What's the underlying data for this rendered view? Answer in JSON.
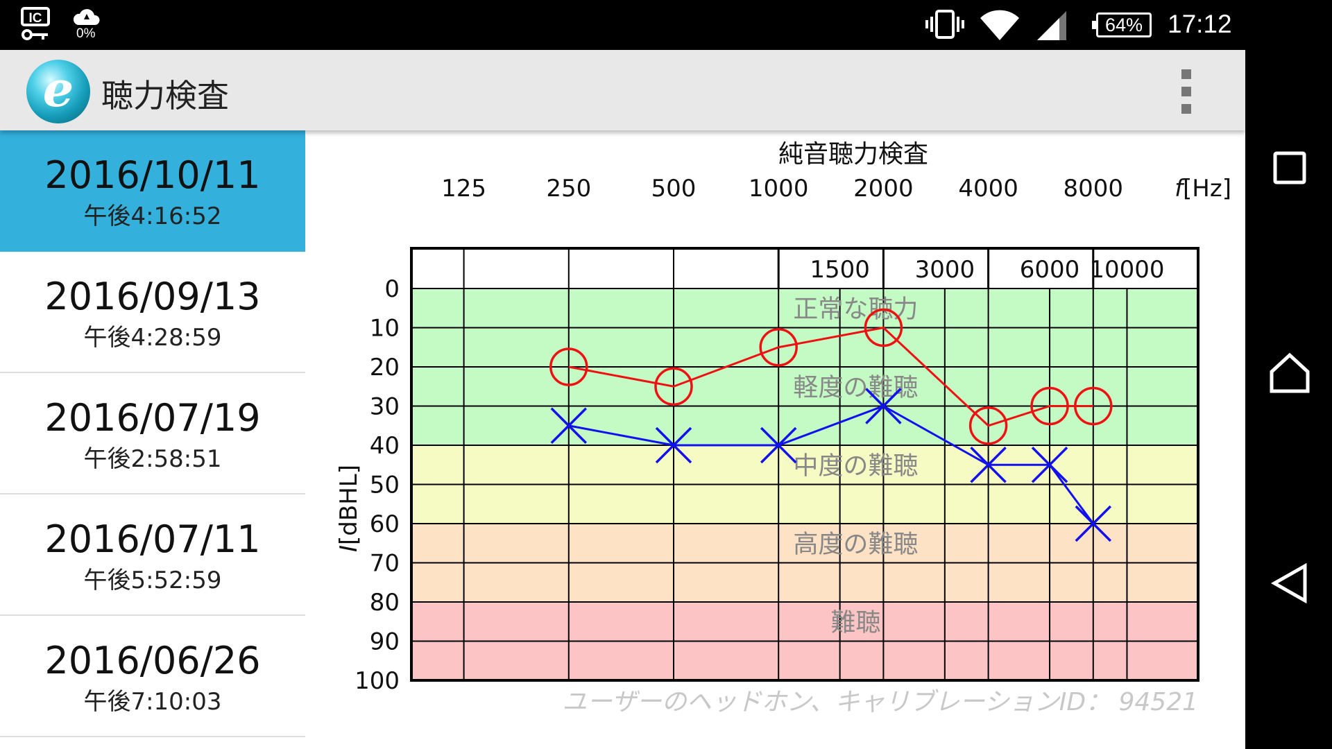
{
  "status_bar": {
    "data_usage": "0%",
    "battery": "64%",
    "time": "17:12",
    "icons": [
      "ic-key-icon",
      "cloud-sync-icon",
      "vibrate-icon",
      "wifi-icon",
      "cell-signal-icon",
      "battery-icon"
    ]
  },
  "action_bar": {
    "title": "聴力検査",
    "logo_icon": "app-logo-e-icon",
    "logo_letter": "e",
    "menu_icon": "overflow-menu-icon"
  },
  "date_list": [
    {
      "date": "2016/10/11",
      "time": "午後4:16:52",
      "selected": true
    },
    {
      "date": "2016/09/13",
      "time": "午後4:28:59",
      "selected": false
    },
    {
      "date": "2016/07/19",
      "time": "午後2:58:51",
      "selected": false
    },
    {
      "date": "2016/07/11",
      "time": "午後5:52:59",
      "selected": false
    },
    {
      "date": "2016/06/26",
      "time": "午後7:10:03",
      "selected": false
    }
  ],
  "nav_bar": {
    "icons": [
      "recent-apps-icon",
      "home-icon",
      "back-icon"
    ]
  },
  "chart_data": {
    "type": "line",
    "title": "純音聴力検査",
    "xlabel_symbol": "f",
    "xlabel_unit": "[Hz]",
    "ylabel_symbol": "I",
    "ylabel_unit": "[dBHL]",
    "x_scale": "log",
    "x_octave_ticks": [
      125,
      250,
      500,
      1000,
      2000,
      4000,
      8000
    ],
    "x_mid_ticks": [
      1500,
      3000,
      6000,
      10000
    ],
    "y_ticks": [
      0,
      10,
      20,
      30,
      40,
      50,
      60,
      70,
      80,
      90,
      100
    ],
    "y_inverted": true,
    "ylim": [
      0,
      100
    ],
    "grid": true,
    "zones": [
      {
        "label": "正常な聴力",
        "from": 0,
        "to": 10,
        "color": "#c4fbc4"
      },
      {
        "label": "軽度の難聴",
        "from": 10,
        "to": 40,
        "color": "#c4fbc4"
      },
      {
        "label": "中度の難聴",
        "from": 40,
        "to": 60,
        "color": "#f6fbc4"
      },
      {
        "label": "高度の難聴",
        "from": 60,
        "to": 80,
        "color": "#fde2c6"
      },
      {
        "label": "難聴",
        "from": 80,
        "to": 100,
        "color": "#fcc4c4"
      }
    ],
    "zone_label_positions": [
      {
        "label": "正常な聴力",
        "at": 5
      },
      {
        "label": "軽度の難聴",
        "at": 25
      },
      {
        "label": "中度の難聴",
        "at": 45
      },
      {
        "label": "高度の難聴",
        "at": 65
      },
      {
        "label": "難聴",
        "at": 85
      }
    ],
    "series": [
      {
        "marker": "circle",
        "color": "#ee1111",
        "x": [
          250,
          500,
          1000,
          2000,
          4000,
          6000,
          8000
        ],
        "y": [
          20,
          25,
          15,
          10,
          35,
          30,
          30
        ]
      },
      {
        "marker": "cross",
        "color": "#1111ee",
        "x": [
          250,
          500,
          1000,
          2000,
          4000,
          6000,
          8000
        ],
        "y": [
          35,
          40,
          40,
          30,
          45,
          45,
          60
        ]
      }
    ],
    "footnote": "ユーザーのヘッドホン、キャリブレーションID： 94521"
  }
}
